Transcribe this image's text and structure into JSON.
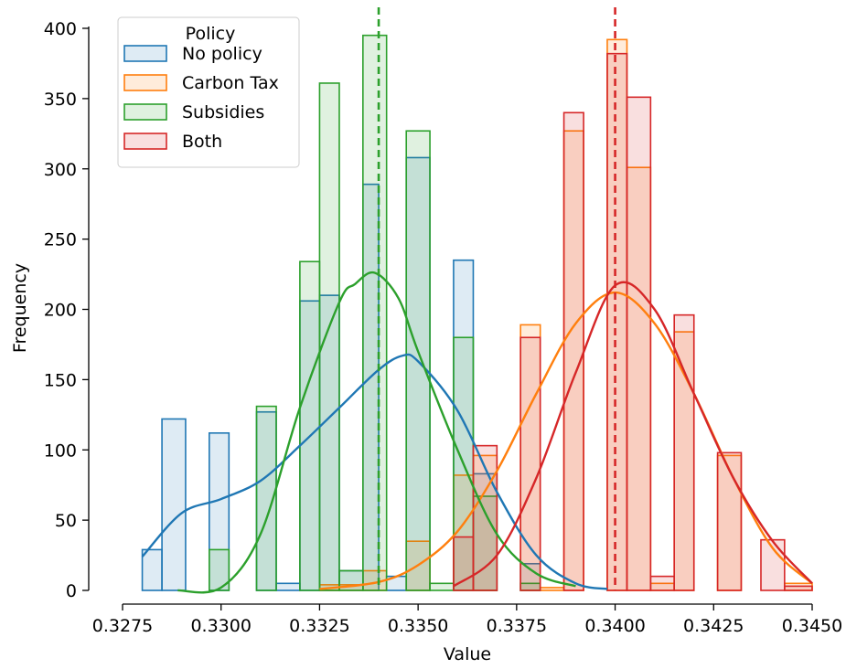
{
  "chart_data": {
    "type": "histogram",
    "xlabel": "Value",
    "ylabel": "Frequency",
    "xlim": [
      0.328,
      0.345
    ],
    "ylim": [
      0,
      400
    ],
    "x_ticks": [
      "0.3275",
      "0.3300",
      "0.3325",
      "0.3350",
      "0.3375",
      "0.3400",
      "0.3425",
      "0.3450"
    ],
    "x_tick_values": [
      0.3275,
      0.33,
      0.3325,
      0.335,
      0.3375,
      0.34,
      0.3425,
      0.345
    ],
    "y_ticks": [
      "0",
      "50",
      "100",
      "150",
      "200",
      "250",
      "300",
      "350",
      "400"
    ],
    "y_tick_values": [
      0,
      50,
      100,
      150,
      200,
      250,
      300,
      350,
      400
    ],
    "legend": {
      "title": "Policy",
      "placement": "top-left"
    },
    "series": [
      {
        "name": "No policy",
        "color": "#1f77b4",
        "bins": [
          [
            0.328,
            0.3285,
            29
          ],
          [
            0.3285,
            0.3291,
            122
          ],
          [
            0.3297,
            0.3302,
            112
          ],
          [
            0.3309,
            0.3314,
            127
          ],
          [
            0.3314,
            0.332,
            5
          ],
          [
            0.332,
            0.3325,
            206
          ],
          [
            0.3325,
            0.333,
            210
          ],
          [
            0.333,
            0.3336,
            14
          ],
          [
            0.3336,
            0.334,
            289
          ],
          [
            0.3342,
            0.3347,
            10
          ],
          [
            0.3347,
            0.3353,
            308
          ],
          [
            0.3359,
            0.3364,
            235
          ],
          [
            0.3364,
            0.337,
            83
          ],
          [
            0.3376,
            0.3381,
            19
          ]
        ],
        "kde": [
          [
            0.328,
            24
          ],
          [
            0.329,
            55
          ],
          [
            0.33,
            65
          ],
          [
            0.331,
            78
          ],
          [
            0.332,
            103
          ],
          [
            0.333,
            130
          ],
          [
            0.334,
            157
          ],
          [
            0.3346,
            167
          ],
          [
            0.335,
            163
          ],
          [
            0.336,
            128
          ],
          [
            0.337,
            70
          ],
          [
            0.338,
            25
          ],
          [
            0.339,
            5
          ],
          [
            0.3398,
            1
          ]
        ]
      },
      {
        "name": "Carbon Tax",
        "color": "#ff7f0e",
        "bins": [
          [
            0.3325,
            0.333,
            4
          ],
          [
            0.333,
            0.3336,
            4
          ],
          [
            0.3336,
            0.3342,
            14
          ],
          [
            0.3347,
            0.3353,
            35
          ],
          [
            0.3359,
            0.3364,
            82
          ],
          [
            0.3364,
            0.337,
            96
          ],
          [
            0.3376,
            0.3381,
            189
          ],
          [
            0.3381,
            0.3387,
            2
          ],
          [
            0.3387,
            0.3392,
            327
          ],
          [
            0.3398,
            0.3403,
            392
          ],
          [
            0.3403,
            0.3409,
            301
          ],
          [
            0.3409,
            0.3415,
            5
          ],
          [
            0.3415,
            0.342,
            184
          ],
          [
            0.3426,
            0.3432,
            96
          ],
          [
            0.3443,
            0.345,
            5
          ]
        ],
        "kde": [
          [
            0.3325,
            1
          ],
          [
            0.334,
            6
          ],
          [
            0.335,
            18
          ],
          [
            0.336,
            42
          ],
          [
            0.337,
            85
          ],
          [
            0.338,
            140
          ],
          [
            0.339,
            190
          ],
          [
            0.34,
            212
          ],
          [
            0.341,
            190
          ],
          [
            0.342,
            140
          ],
          [
            0.343,
            80
          ],
          [
            0.344,
            30
          ],
          [
            0.345,
            5
          ]
        ]
      },
      {
        "name": "Subsidies",
        "color": "#2ca02c",
        "bins": [
          [
            0.3297,
            0.3302,
            29
          ],
          [
            0.3309,
            0.3314,
            131
          ],
          [
            0.332,
            0.3325,
            234
          ],
          [
            0.3325,
            0.333,
            361
          ],
          [
            0.333,
            0.3336,
            14
          ],
          [
            0.3336,
            0.3342,
            395
          ],
          [
            0.3347,
            0.3353,
            327
          ],
          [
            0.3353,
            0.3359,
            5
          ],
          [
            0.3359,
            0.3364,
            180
          ],
          [
            0.3364,
            0.337,
            67
          ],
          [
            0.3376,
            0.3381,
            5
          ]
        ],
        "kde": [
          [
            0.3289,
            0
          ],
          [
            0.33,
            2
          ],
          [
            0.331,
            40
          ],
          [
            0.332,
            130
          ],
          [
            0.333,
            205
          ],
          [
            0.3334,
            218
          ],
          [
            0.3339,
            226
          ],
          [
            0.3345,
            208
          ],
          [
            0.335,
            170
          ],
          [
            0.336,
            100
          ],
          [
            0.337,
            40
          ],
          [
            0.338,
            12
          ],
          [
            0.339,
            3
          ]
        ]
      },
      {
        "name": "Both",
        "color": "#d62728",
        "bins": [
          [
            0.3359,
            0.3364,
            38
          ],
          [
            0.3364,
            0.337,
            103
          ],
          [
            0.3376,
            0.3381,
            180
          ],
          [
            0.3387,
            0.3392,
            340
          ],
          [
            0.3398,
            0.3403,
            382
          ],
          [
            0.3403,
            0.3409,
            351
          ],
          [
            0.3409,
            0.3415,
            10
          ],
          [
            0.3415,
            0.342,
            196
          ],
          [
            0.3426,
            0.3432,
            98
          ],
          [
            0.3437,
            0.3443,
            36
          ],
          [
            0.3443,
            0.345,
            3
          ]
        ],
        "kde": [
          [
            0.3359,
            3
          ],
          [
            0.337,
            25
          ],
          [
            0.338,
            80
          ],
          [
            0.339,
            155
          ],
          [
            0.34,
            217
          ],
          [
            0.341,
            200
          ],
          [
            0.342,
            140
          ],
          [
            0.343,
            80
          ],
          [
            0.344,
            35
          ],
          [
            0.345,
            5
          ]
        ]
      }
    ],
    "vlines": [
      {
        "x": 0.334,
        "color": "#2ca02c",
        "style": "dashed"
      },
      {
        "x": 0.34,
        "color": "#d62728",
        "style": "dashed"
      }
    ]
  }
}
